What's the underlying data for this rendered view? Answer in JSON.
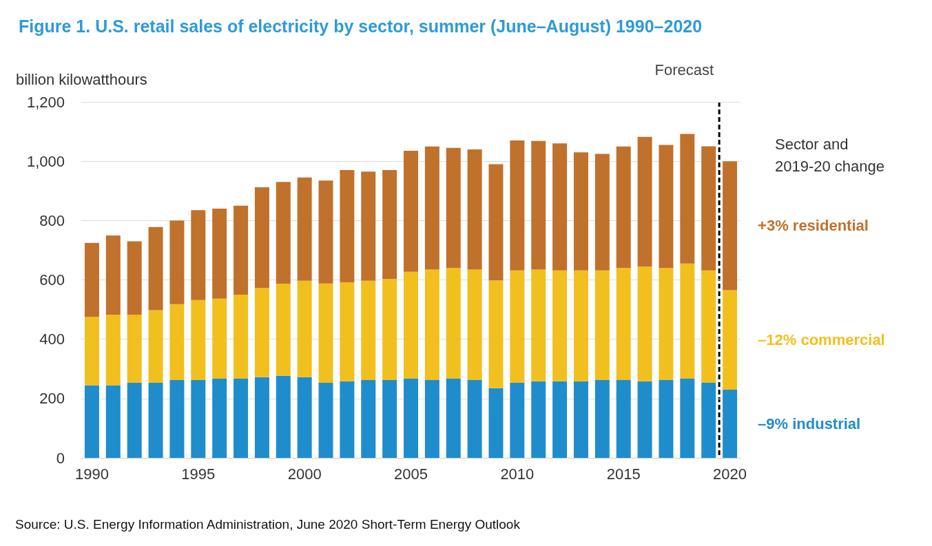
{
  "chart_data": {
    "type": "bar",
    "stacked": true,
    "title": "Figure 1. U.S. retail sales of electricity by sector, summer (June–August) 1990–2020",
    "ylabel": "billion kilowatthours",
    "legend_title": "Sector and 2019-20 change",
    "x": [
      1990,
      1991,
      1992,
      1993,
      1994,
      1995,
      1996,
      1997,
      1998,
      1999,
      2000,
      2001,
      2002,
      2003,
      2004,
      2005,
      2006,
      2007,
      2008,
      2009,
      2010,
      2011,
      2012,
      2013,
      2014,
      2015,
      2016,
      2017,
      2018,
      2019,
      2020
    ],
    "xlim": [
      1989.5,
      2020.5
    ],
    "xticks": [
      1990,
      1995,
      2000,
      2005,
      2010,
      2015,
      2020
    ],
    "ylim": [
      0,
      1200
    ],
    "yticks": [
      0,
      200,
      400,
      600,
      800,
      {
        "value": 1000,
        "label": "1,000"
      },
      {
        "value": 1200,
        "label": "1,200"
      }
    ],
    "series": [
      {
        "name": "–9% industrial",
        "color": "#1f8dcc",
        "values": [
          245,
          245,
          253,
          253,
          262,
          262,
          267,
          267,
          272,
          277,
          272,
          253,
          258,
          262,
          262,
          267,
          262,
          267,
          262,
          235,
          253,
          258,
          258,
          258,
          262,
          262,
          258,
          262,
          267,
          253,
          230
        ]
      },
      {
        "name": "–12% commercial",
        "color": "#f2c01e",
        "values": [
          230,
          238,
          230,
          245,
          256,
          270,
          270,
          283,
          301,
          310,
          325,
          335,
          334,
          335,
          341,
          360,
          373,
          373,
          373,
          363,
          379,
          377,
          374,
          374,
          370,
          378,
          387,
          378,
          388,
          379,
          335
        ]
      },
      {
        "name": "+3% residential",
        "color": "#c0712b",
        "values": [
          250,
          267,
          247,
          280,
          282,
          303,
          303,
          300,
          339,
          343,
          348,
          347,
          378,
          368,
          367,
          408,
          415,
          405,
          405,
          392,
          438,
          433,
          428,
          398,
          393,
          410,
          437,
          415,
          437,
          418,
          435
        ]
      }
    ],
    "ref_lines": [
      {
        "axis": "x",
        "value": 2019.5,
        "label": "Forecast",
        "color": "#000000",
        "line_style": "dashed"
      }
    ],
    "grid": "y",
    "legend": false,
    "annotations": [
      "Source: U.S. Energy Information Administration, June 2020 Short-Term Energy Outlook"
    ]
  }
}
